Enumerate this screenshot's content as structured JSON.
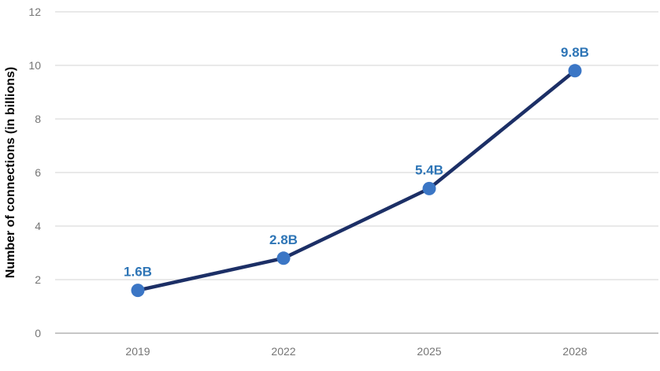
{
  "chart_data": {
    "type": "line",
    "title": "",
    "xlabel": "",
    "ylabel": "Number of connections (in billions)",
    "categories": [
      "2019",
      "2022",
      "2025",
      "2028"
    ],
    "series": [
      {
        "name": "Number of connections",
        "values": [
          1.6,
          2.8,
          5.4,
          9.8
        ],
        "point_labels": [
          "1.6B",
          "2.8B",
          "5.4B",
          "9.8B"
        ]
      }
    ],
    "ylim": [
      0,
      12
    ],
    "yticks": [
      0,
      2,
      4,
      6,
      8,
      10,
      12
    ],
    "grid": "horizontal",
    "legend": "none",
    "colors": {
      "line": "#1c2f66",
      "marker": "#3b76c5",
      "data_label": "#2e75b6",
      "tick_label": "#757575",
      "axis_title": "#000000",
      "gridline": "#e2e2e2",
      "baseline": "#b3b3b3",
      "background": "#ffffff"
    }
  }
}
